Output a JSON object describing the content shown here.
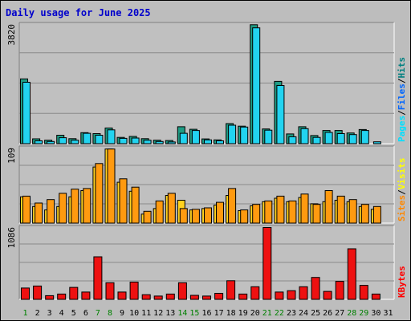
{
  "chart_data": {
    "type": "bar",
    "title": "Daily usage for June 2025",
    "x": [
      "1",
      "2",
      "3",
      "4",
      "5",
      "6",
      "7",
      "8",
      "9",
      "10",
      "11",
      "12",
      "13",
      "14",
      "15",
      "16",
      "17",
      "18",
      "19",
      "20",
      "21",
      "22",
      "23",
      "24",
      "25",
      "26",
      "27",
      "28",
      "29",
      "30",
      "31"
    ],
    "weekend_days": [
      "1",
      "7",
      "8",
      "14",
      "15",
      "21",
      "22",
      "28",
      "29"
    ],
    "panels": [
      {
        "ylabel": "3820",
        "ylim": [
          0,
          3820
        ],
        "legend": [
          {
            "text": "Hits",
            "color": "#008080"
          },
          {
            "text": "Files",
            "color": "#0066ff"
          },
          {
            "text": "Pages",
            "color": "#00e0ff"
          }
        ],
        "series": [
          {
            "name": "Hits",
            "color": "#1f9c84",
            "values": [
              2070,
              155,
              110,
              270,
              160,
              350,
              320,
              500,
              200,
              230,
              160,
              110,
              100,
              540,
              460,
              150,
              120,
              640,
              560,
              3800,
              470,
              1990,
              310,
              540,
              260,
              420,
              420,
              340,
              450,
              0,
              0
            ]
          },
          {
            "name": "Files",
            "color": "#22d3f0",
            "values": [
              1960,
              90,
              70,
              190,
              110,
              330,
              270,
              440,
              170,
              180,
              110,
              70,
              55,
              330,
              420,
              120,
              90,
              590,
              530,
              3700,
              430,
              1860,
              220,
              480,
              200,
              360,
              320,
              290,
              420,
              60,
              0
            ]
          }
        ]
      },
      {
        "ylabel": "109",
        "ylim": [
          0,
          109
        ],
        "legend": [
          {
            "text": "Visits",
            "color": "#ffff00"
          },
          {
            "text": "Sites",
            "color": "#ff8800"
          }
        ],
        "series": [
          {
            "name": "Visits",
            "color": "#ffd21f",
            "values": [
              38,
              24,
              19,
              24,
              38,
              47,
              81,
              107,
              59,
              46,
              13,
              21,
              40,
              33,
              19,
              21,
              26,
              40,
              18,
              25,
              31,
              36,
              31,
              37,
              28,
              31,
              33,
              31,
              24,
              20,
              0
            ]
          },
          {
            "name": "Sites",
            "color": "#ff9a10",
            "values": [
              39,
              29,
              34,
              43,
              49,
              50,
              86,
              107,
              64,
              52,
              17,
              32,
              43,
              21,
              20,
              22,
              30,
              50,
              19,
              27,
              32,
              39,
              32,
              42,
              27,
              47,
              39,
              34,
              27,
              24,
              0
            ]
          }
        ]
      },
      {
        "ylabel": "1086",
        "ylim": [
          0,
          1086
        ],
        "legend": [
          {
            "text": "KBytes",
            "color": "#ff0000"
          }
        ],
        "series": [
          {
            "name": "KBytes",
            "color": "#ee1111",
            "values": [
              170,
              200,
              55,
              80,
              180,
              110,
              640,
              250,
              110,
              260,
              70,
              50,
              80,
              250,
              60,
              50,
              90,
              280,
              80,
              190,
              1080,
              110,
              130,
              190,
              330,
              120,
              270,
              760,
              210,
              80,
              0
            ]
          }
        ]
      }
    ]
  }
}
